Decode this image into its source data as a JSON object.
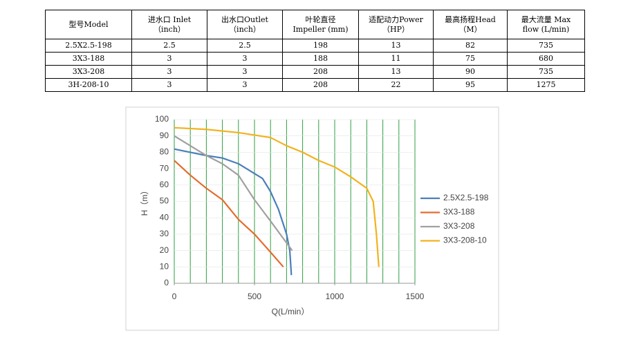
{
  "table": {
    "header": [
      [
        "型号Model"
      ],
      [
        "进水口 Inlet",
        "（inch）"
      ],
      [
        "出水口Outlet",
        "（inch）"
      ],
      [
        "叶轮直径",
        "Impeller (mm)"
      ],
      [
        "适配动力Power",
        "（HP）"
      ],
      [
        "最高扬程Head",
        "（M）"
      ],
      [
        "最大流量  Max",
        "flow (L/min)"
      ]
    ],
    "rows": [
      [
        "2.5X2.5-198",
        "2.5",
        "2.5",
        "198",
        "13",
        "82",
        "735"
      ],
      [
        "3X3-188",
        "3",
        "3",
        "188",
        "11",
        "75",
        "680"
      ],
      [
        "3X3-208",
        "3",
        "3",
        "208",
        "13",
        "90",
        "735"
      ],
      [
        "3H-208-10",
        "3",
        "3",
        "208",
        "22",
        "95",
        "1275"
      ]
    ]
  },
  "chart_data": {
    "type": "line",
    "x_label": "Q(L/min）",
    "y_label": "H（m）",
    "xlim": [
      0,
      1500
    ],
    "xticks": [
      0,
      500,
      1000,
      1500
    ],
    "ylim": [
      0,
      100
    ],
    "yticks": [
      0,
      10,
      20,
      30,
      40,
      50,
      60,
      70,
      80,
      90,
      100
    ],
    "xgrid": [
      0,
      100,
      200,
      300,
      400,
      500,
      600,
      700,
      800,
      900,
      1000,
      1100,
      1200,
      1300,
      1400,
      1500
    ],
    "grid_color": "#2e9e3e",
    "legend": "right",
    "series": [
      {
        "name": "2.5X2.5-198",
        "color": "#4a7ebb",
        "x": [
          0,
          100,
          200,
          300,
          400,
          500,
          550,
          600,
          650,
          700,
          720,
          730
        ],
        "values": [
          82,
          80,
          78,
          76.5,
          73,
          67,
          64,
          56,
          45,
          30,
          20,
          5
        ]
      },
      {
        "name": "3X3-188",
        "color": "#e36c2e",
        "x": [
          0,
          100,
          200,
          300,
          400,
          500,
          600,
          680
        ],
        "values": [
          75,
          66,
          58,
          51,
          39,
          30,
          19,
          10
        ]
      },
      {
        "name": "3X3-208",
        "color": "#a0a0a0",
        "x": [
          0,
          100,
          200,
          300,
          400,
          500,
          600,
          735
        ],
        "values": [
          90,
          84,
          78,
          73,
          66,
          51,
          38,
          20
        ]
      },
      {
        "name": "3X3-208-10",
        "color": "#f2b21d",
        "x": [
          0,
          200,
          400,
          600,
          700,
          800,
          900,
          1000,
          1100,
          1200,
          1240,
          1260,
          1275
        ],
        "values": [
          95,
          94,
          92,
          89,
          84,
          80,
          75,
          71,
          65,
          58,
          50,
          30,
          10
        ]
      }
    ]
  }
}
